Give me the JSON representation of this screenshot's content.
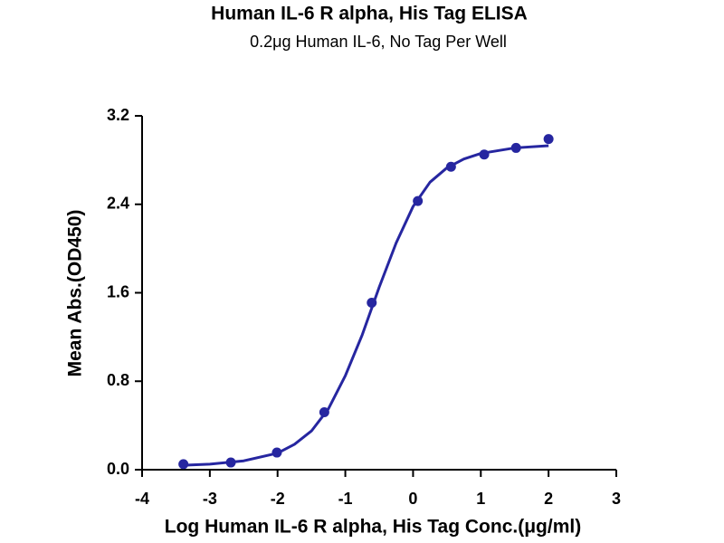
{
  "chart_data": {
    "type": "scatter",
    "title": "Human IL-6 R alpha, His Tag ELISA",
    "subtitle": "0.2μg Human IL-6, No Tag Per Well",
    "x_label": "Log Human IL-6 R alpha, His Tag Conc.(μg/ml)",
    "y_label": "Mean Abs.(OD450)",
    "xlim": [
      -4,
      3
    ],
    "xticks": [
      -4,
      -3,
      -2,
      -1,
      0,
      1,
      2,
      3
    ],
    "ylim": [
      0,
      3.2
    ],
    "yticks": [
      {
        "value": 0,
        "label": "0.0"
      },
      0.8,
      1.6,
      2.4,
      3.2
    ],
    "grid": false,
    "series": [
      {
        "type": "line",
        "color": "#2626a0",
        "x": [
          -3.4,
          -3,
          -2.5,
          -2,
          -1.75,
          -1.5,
          -1.25,
          -1,
          -0.75,
          -0.5,
          -0.25,
          0,
          0.25,
          0.5,
          0.75,
          1,
          1.5,
          2
        ],
        "values": [
          0.04,
          0.05,
          0.08,
          0.15,
          0.23,
          0.35,
          0.55,
          0.85,
          1.22,
          1.65,
          2.05,
          2.38,
          2.6,
          2.73,
          2.81,
          2.86,
          2.91,
          2.93
        ]
      },
      {
        "type": "scatter",
        "color": "#2626a0",
        "x": [
          -3.39,
          -2.69,
          -2.01,
          -1.31,
          -0.61,
          0.07,
          0.56,
          1.05,
          1.52,
          2.0
        ],
        "values": [
          0.05,
          0.065,
          0.155,
          0.52,
          1.51,
          2.43,
          2.74,
          2.85,
          2.91,
          2.99
        ]
      }
    ]
  }
}
